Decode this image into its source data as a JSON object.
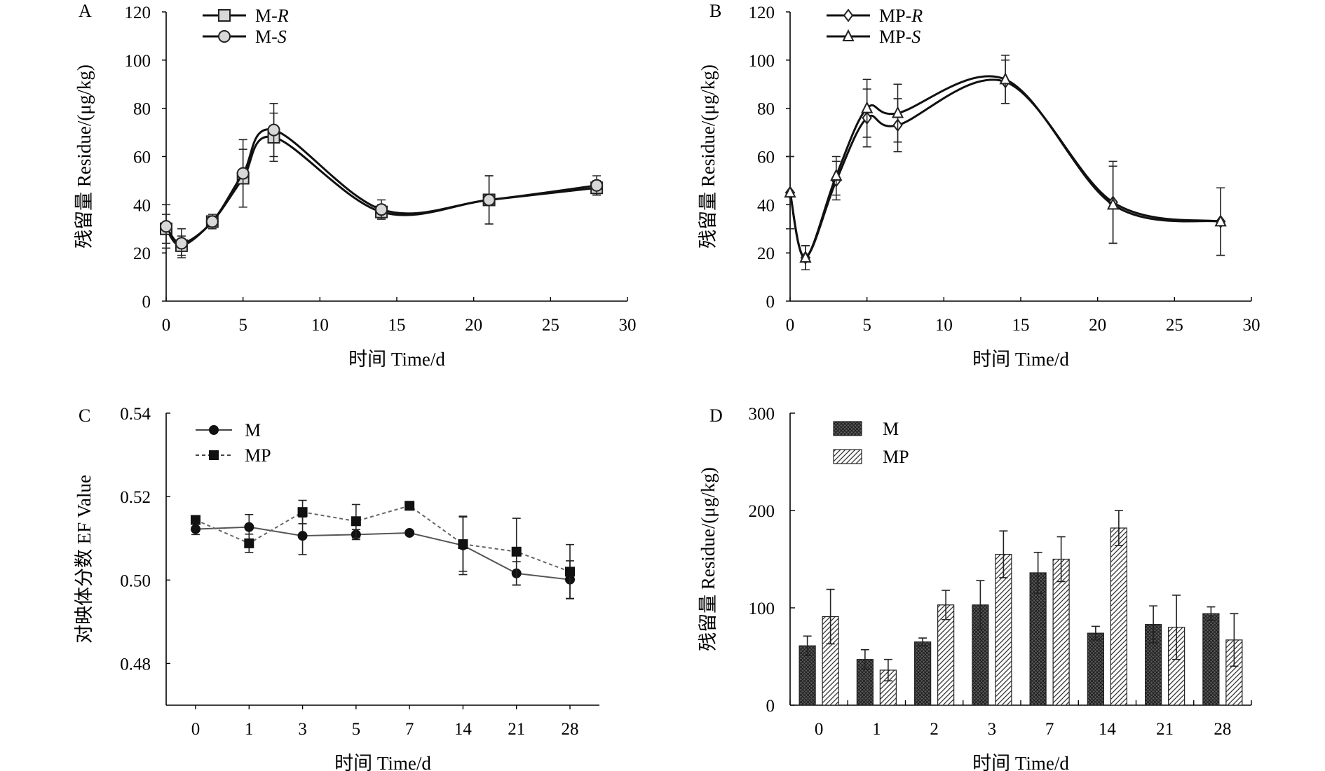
{
  "chart_data": [
    {
      "panel": "A",
      "type": "line",
      "xlabel": "时间 Time/d",
      "ylabel": "残留量 Residue/(μg/kg)",
      "xlim": [
        0,
        30
      ],
      "ylim": [
        0,
        120
      ],
      "xticks": [
        0,
        5,
        10,
        15,
        20,
        25,
        30
      ],
      "yticks": [
        0,
        20,
        40,
        60,
        80,
        100,
        120
      ],
      "legend_position": "top-left",
      "x": [
        0,
        1,
        3,
        5,
        7,
        14,
        21,
        28
      ],
      "series": [
        {
          "name": "M-",
          "name_italic": "R",
          "marker": "square",
          "values": [
            30,
            23,
            33,
            51,
            68,
            37,
            42,
            47
          ],
          "errors": [
            6,
            4,
            2,
            12,
            10,
            3,
            10,
            3
          ]
        },
        {
          "name": "M-",
          "name_italic": "S",
          "marker": "circle",
          "values": [
            31,
            24,
            33,
            53,
            71,
            38,
            42,
            48
          ],
          "errors": [
            9,
            6,
            3,
            14,
            11,
            4,
            10,
            4
          ]
        }
      ]
    },
    {
      "panel": "B",
      "type": "line",
      "xlabel": "时间 Time/d",
      "ylabel": "残留量 Residue/(μg/kg)",
      "xlim": [
        0,
        30
      ],
      "ylim": [
        0,
        120
      ],
      "xticks": [
        0,
        5,
        10,
        15,
        20,
        25,
        30
      ],
      "yticks": [
        0,
        20,
        40,
        60,
        80,
        100,
        120
      ],
      "legend_position": "top-left",
      "x": [
        0,
        1,
        3,
        5,
        7,
        14,
        21,
        28
      ],
      "series": [
        {
          "name": "MP-",
          "name_italic": "R",
          "marker": "diamond",
          "values": [
            45,
            18,
            50,
            76,
            73,
            91,
            41,
            33
          ],
          "errors": [
            15,
            5,
            8,
            12,
            11,
            9,
            17,
            14
          ]
        },
        {
          "name": "MP-",
          "name_italic": "S",
          "marker": "triangle",
          "values": [
            45,
            18,
            52,
            80,
            78,
            92,
            40,
            33
          ],
          "errors": [
            15,
            5,
            8,
            12,
            12,
            10,
            16,
            14
          ]
        }
      ]
    },
    {
      "panel": "C",
      "type": "line",
      "xlabel": "时间 Time/d",
      "ylabel": "对映体分数 EF Value",
      "categories": [
        "0",
        "1",
        "3",
        "5",
        "7",
        "14",
        "21",
        "28"
      ],
      "ylim": [
        0.47,
        0.54
      ],
      "yticks": [
        "0.48",
        "0.50",
        "0.52",
        "0.54"
      ],
      "legend_position": "top-left",
      "series": [
        {
          "name": "M",
          "marker": "circle",
          "dash": false,
          "values": [
            0.5122,
            0.5127,
            0.5106,
            0.5109,
            0.5113,
            0.5083,
            0.5016,
            0.5001
          ],
          "errors": [
            0.0013,
            0.003,
            0.0045,
            0.0012,
            0.0005,
            0.007,
            0.0028,
            0.0045
          ]
        },
        {
          "name": "MP",
          "marker": "square",
          "dash": true,
          "values": [
            0.5144,
            0.5088,
            0.5163,
            0.5141,
            0.5178,
            0.5086,
            0.5068,
            0.502
          ],
          "errors": [
            0.001,
            0.0022,
            0.0028,
            0.004,
            0.0008,
            0.0065,
            0.008,
            0.0065
          ]
        }
      ]
    },
    {
      "panel": "D",
      "type": "bar",
      "xlabel": "时间 Time/d",
      "ylabel": "残留量 Residue/(μg/kg)",
      "categories": [
        "0",
        "1",
        "2",
        "3",
        "7",
        "14",
        "21",
        "28"
      ],
      "ylim": [
        0,
        300
      ],
      "yticks": [
        0,
        100,
        200,
        300
      ],
      "legend_position": "top-left",
      "series": [
        {
          "name": "M",
          "pattern": "crosshatch",
          "values": [
            61,
            47,
            65,
            103,
            136,
            74,
            83,
            94
          ],
          "errors": [
            10,
            10,
            4,
            25,
            21,
            7,
            19,
            7
          ]
        },
        {
          "name": "MP",
          "pattern": "diagonal",
          "values": [
            91,
            36,
            103,
            155,
            150,
            182,
            80,
            67
          ],
          "errors": [
            28,
            11,
            15,
            24,
            23,
            18,
            33,
            27
          ]
        }
      ]
    }
  ]
}
